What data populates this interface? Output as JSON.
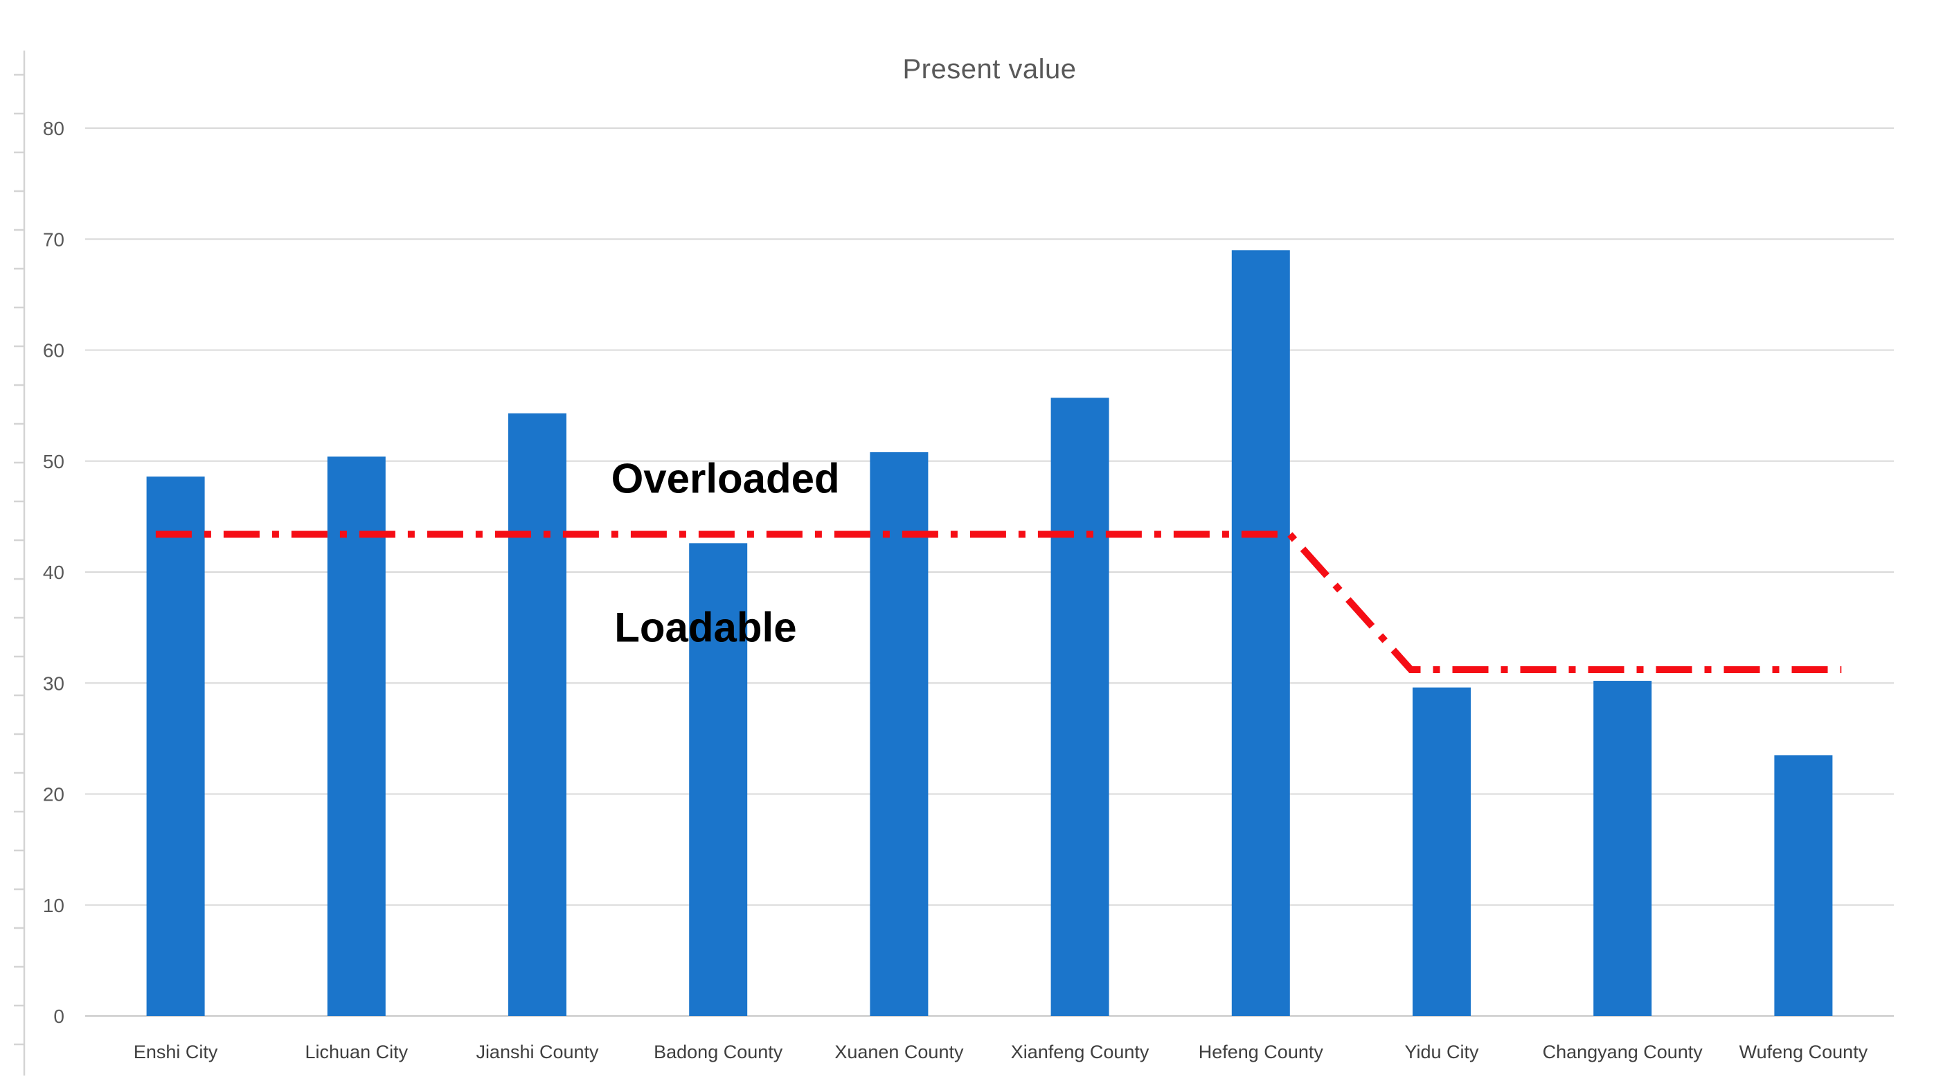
{
  "chart_data": {
    "type": "bar",
    "title": "Present value",
    "xlabel": "",
    "ylabel": "",
    "categories": [
      "Enshi City",
      "Lichuan City",
      "Jianshi County",
      "Badong County",
      "Xuanen County",
      "Xianfeng County",
      "Hefeng County",
      "Yidu City",
      "Changyang County",
      "Wufeng County"
    ],
    "values": [
      48.6,
      50.4,
      54.3,
      42.6,
      50.8,
      55.7,
      69.0,
      29.6,
      30.2,
      23.5
    ],
    "ylim": [
      0,
      80
    ],
    "y_tick_step": 10,
    "y_tick_labels": [
      "0",
      "10",
      "20",
      "30",
      "40",
      "50",
      "60",
      "70",
      "80"
    ],
    "grid": true,
    "legend": "none",
    "bar_color": "#1B75CB",
    "gridline_color": "#D9D9D9",
    "baseline_color": "#C9C9C9",
    "ruler_color": "#D4D4D4",
    "axis_text_color": "#595959",
    "category_text_color": "#3F3F3F",
    "background_color": "#FFFFFF",
    "threshold_line": {
      "color": "#F50D15",
      "style": "dash-dot",
      "points": [
        {
          "x": -0.11,
          "value": 43.4
        },
        {
          "x": 6.16,
          "value": 43.4
        },
        {
          "x": 6.83,
          "value": 31.2
        },
        {
          "x": 9.21,
          "value": 31.2
        }
      ]
    },
    "annotations": [
      {
        "text": "Overloaded",
        "x": 3.04,
        "value": 48.4
      },
      {
        "text": "Loadable",
        "x": 2.93,
        "value": 35.0
      }
    ]
  }
}
